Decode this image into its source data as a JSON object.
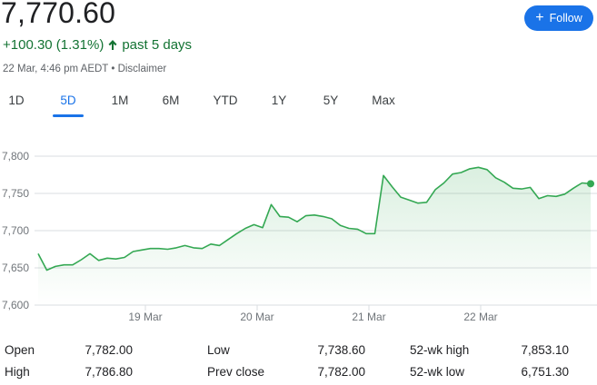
{
  "quote": {
    "price": "7,770.60",
    "change": "+100.30 (1.31%)",
    "period": "past 5 days",
    "timestamp": "22 Mar, 4:46 pm AEDT",
    "separator": "•",
    "disclaimer": "Disclaimer",
    "positive_color": "#137333"
  },
  "follow_button": {
    "label": "Follow",
    "icon": "plus-icon",
    "color": "#1a73e8"
  },
  "tabs": [
    {
      "label": "1D",
      "active": false
    },
    {
      "label": "5D",
      "active": true
    },
    {
      "label": "1M",
      "active": false
    },
    {
      "label": "6M",
      "active": false
    },
    {
      "label": "YTD",
      "active": false
    },
    {
      "label": "1Y",
      "active": false
    },
    {
      "label": "5Y",
      "active": false
    },
    {
      "label": "Max",
      "active": false
    }
  ],
  "chart_data": {
    "type": "area",
    "line_color": "#34a853",
    "ylim": [
      7600,
      7800
    ],
    "y_ticks": [
      {
        "value": 7800,
        "label": "7,800"
      },
      {
        "value": 7750,
        "label": "7,750"
      },
      {
        "value": 7700,
        "label": "7,700"
      },
      {
        "value": 7650,
        "label": "7,650"
      },
      {
        "value": 7600,
        "label": "7,600"
      }
    ],
    "x_ticks": [
      "19 Mar",
      "20 Mar",
      "21 Mar",
      "22 Mar"
    ],
    "grid": "horizontal",
    "series": [
      {
        "values": [
          7669,
          7647,
          7652,
          7654,
          7654,
          7661,
          7669,
          7660,
          7663,
          7662,
          7664,
          7672,
          7674,
          7676,
          7676,
          7675,
          7677,
          7680,
          7677,
          7676,
          7682,
          7680,
          7688,
          7696,
          7703,
          7708,
          7704,
          7735,
          7719,
          7718,
          7712,
          7720,
          7721,
          7719,
          7716,
          7707,
          7703,
          7702,
          7696,
          7696,
          7774,
          7759,
          7745,
          7741,
          7737,
          7738,
          7755,
          7764,
          7776,
          7778,
          7783,
          7785,
          7782,
          7771,
          7765,
          7757,
          7756,
          7758,
          7743,
          7747,
          7746,
          7749,
          7757,
          7764,
          7763
        ]
      }
    ]
  },
  "stats": [
    [
      {
        "label": "Open",
        "value": "7,782.00"
      },
      {
        "label": "Low",
        "value": "7,738.60"
      },
      {
        "label": "52-wk high",
        "value": "7,853.10"
      }
    ],
    [
      {
        "label": "High",
        "value": "7,786.80"
      },
      {
        "label": "Prev close",
        "value": "7,782.00"
      },
      {
        "label": "52-wk low",
        "value": "6,751.30"
      }
    ]
  ]
}
